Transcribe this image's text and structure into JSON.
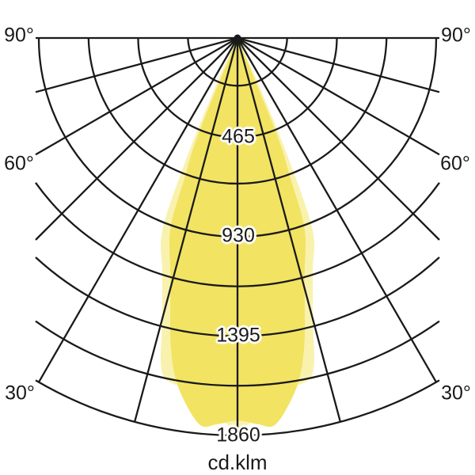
{
  "labels": {
    "angle_90": "90°",
    "angle_60": "60°",
    "angle_30": "30°",
    "radial_465": "465",
    "radial_930": "930",
    "radial_1395": "1395",
    "radial_1860": "1860",
    "unit": "cd.klm"
  },
  "colors": {
    "background": "#ffffff",
    "line": "#1a1a1a",
    "text": "#1a1a1a",
    "beam_inner": "#F2E363",
    "beam_outer": "#F9F2AE"
  },
  "chart_data": {
    "type": "polar",
    "subtype": "luminous-intensity-distribution",
    "unit": "cd.klm",
    "radial_tick_values": [
      465,
      930,
      1395,
      1860
    ],
    "radial_axis_max": 1860,
    "minor_arc_step": 232.5,
    "arc_count": 8,
    "labeled_every_nth_arc": 2,
    "angle_tick_labels_deg": [
      90,
      60,
      30
    ],
    "ray_step_deg": 15,
    "angle_range_deg": [
      -90,
      90
    ],
    "grid": true,
    "legend_position": "none",
    "series": [
      {
        "name": "beam-outer",
        "color": "#F9F2AE",
        "symmetric": true,
        "angles_deg": [
          0,
          2.5,
          5,
          9,
          12.7,
          15,
          18,
          21.4,
          23,
          24.5,
          25.2
        ],
        "values": [
          1830,
          1790,
          1740,
          1660,
          1605,
          1360,
          1140,
          960,
          595,
          220,
          0
        ]
      },
      {
        "name": "beam-inner",
        "color": "#F2E363",
        "symmetric": true,
        "angles_deg": [
          0,
          3,
          5.5,
          8.5,
          10.7,
          12.5,
          14,
          16,
          19.4,
          20.7,
          22.2,
          23.5
        ],
        "values": [
          1790,
          1810,
          1820,
          1710,
          1595,
          1450,
          1300,
          1140,
          945,
          700,
          480,
          0
        ]
      }
    ]
  }
}
